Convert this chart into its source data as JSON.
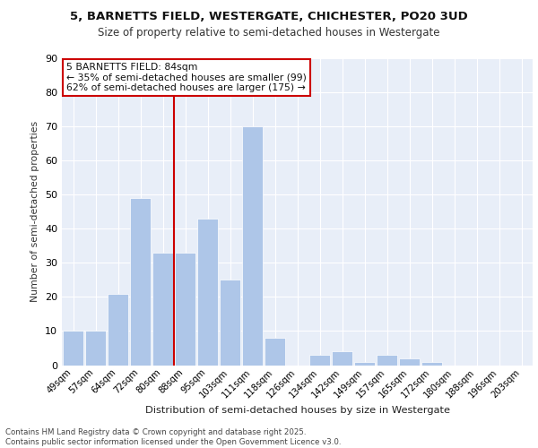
{
  "title1": "5, BARNETTS FIELD, WESTERGATE, CHICHESTER, PO20 3UD",
  "title2": "Size of property relative to semi-detached houses in Westergate",
  "xlabel": "Distribution of semi-detached houses by size in Westergate",
  "ylabel": "Number of semi-detached properties",
  "categories": [
    "49sqm",
    "57sqm",
    "64sqm",
    "72sqm",
    "80sqm",
    "88sqm",
    "95sqm",
    "103sqm",
    "111sqm",
    "118sqm",
    "126sqm",
    "134sqm",
    "142sqm",
    "149sqm",
    "157sqm",
    "165sqm",
    "172sqm",
    "180sqm",
    "188sqm",
    "196sqm",
    "203sqm"
  ],
  "values": [
    10,
    10,
    21,
    49,
    33,
    33,
    43,
    25,
    70,
    8,
    0,
    3,
    4,
    1,
    3,
    2,
    1,
    0,
    0,
    0,
    0
  ],
  "bar_color": "#aec6e8",
  "bar_edge_color": "#ffffff",
  "background_color": "#e8eef8",
  "grid_color": "#ffffff",
  "vline_value": 4.5,
  "vline_color": "#cc0000",
  "annotation_title": "5 BARNETTS FIELD: 84sqm",
  "annotation_line1": "← 35% of semi-detached houses are smaller (99)",
  "annotation_line2": "62% of semi-detached houses are larger (175) →",
  "annotation_box_color": "#cc0000",
  "ylim": [
    0,
    90
  ],
  "yticks": [
    0,
    10,
    20,
    30,
    40,
    50,
    60,
    70,
    80,
    90
  ],
  "footer1": "Contains HM Land Registry data © Crown copyright and database right 2025.",
  "footer2": "Contains public sector information licensed under the Open Government Licence v3.0."
}
